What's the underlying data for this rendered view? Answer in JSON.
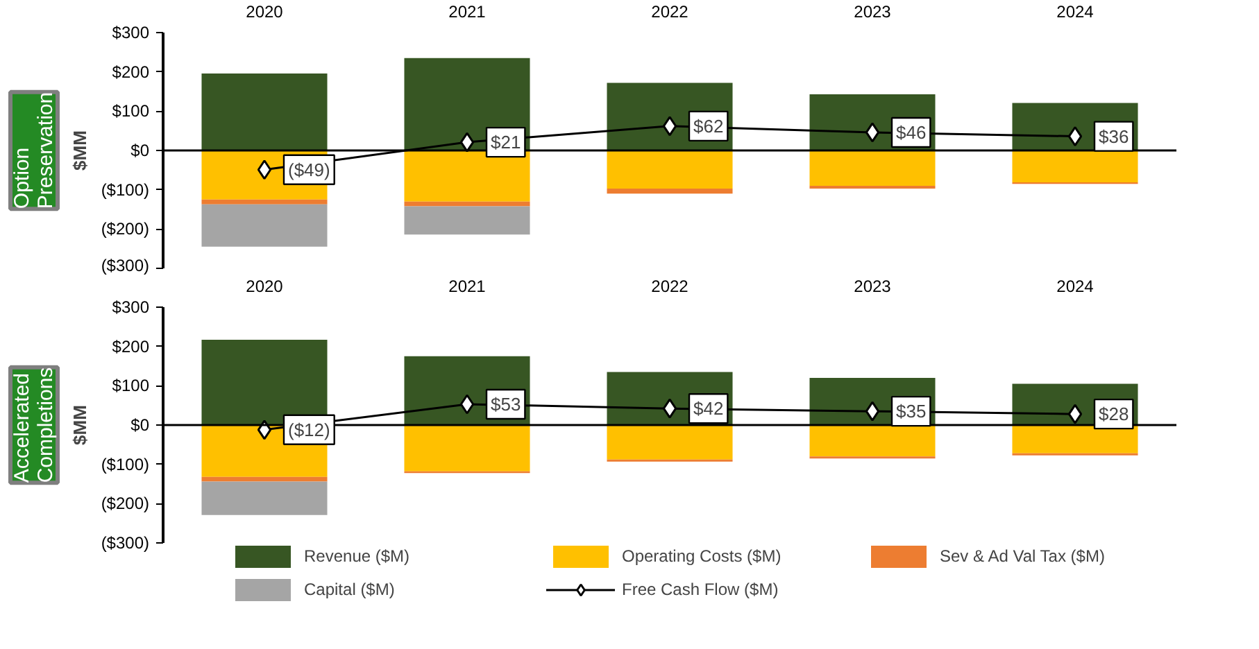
{
  "chart_data": [
    {
      "type": "bar",
      "title": "Option Preservation",
      "ylabel": "$MM",
      "stacked": true,
      "categories": [
        "2020",
        "2021",
        "2022",
        "2023",
        "2024"
      ],
      "series": [
        {
          "color": "#375623",
          "values": [
            196,
            235,
            172,
            143,
            121
          ]
        },
        {
          "color": "#ffc000",
          "values": [
            -125,
            -130,
            -97,
            -90,
            -81
          ]
        },
        {
          "color": "#ed7d31",
          "values": [
            -12,
            -12,
            -13,
            -7,
            -4
          ]
        },
        {
          "color": "#a5a5a5",
          "values": [
            -108,
            -72,
            null,
            null,
            null
          ]
        },
        {
          "type": "line",
          "color": "#000000",
          "marker": "diamond",
          "values": [
            -49,
            21,
            62,
            46,
            36
          ],
          "value_labels": [
            "($49)",
            "$21",
            "$62",
            "$46",
            "$36"
          ]
        }
      ],
      "ylim": [
        -300,
        300
      ],
      "yticks": [
        {
          "value": -300,
          "label": "($300)"
        },
        {
          "value": -200,
          "label": "($200)"
        },
        {
          "value": -100,
          "label": "($100)"
        },
        {
          "value": 0,
          "label": "$0"
        },
        {
          "value": 100,
          "label": "$100"
        },
        {
          "value": 200,
          "label": "$200"
        },
        {
          "value": 300,
          "label": "$300"
        }
      ],
      "ref_lines": [
        {
          "axis": "y",
          "value": 0,
          "label": null
        }
      ],
      "grid": false,
      "legend": false
    },
    {
      "type": "bar",
      "title": "Accelerated Completions",
      "ylabel": "$MM",
      "stacked": true,
      "categories": [
        "2020",
        "2021",
        "2022",
        "2023",
        "2024"
      ],
      "series": [
        {
          "name": "Revenue ($M)",
          "color": "#375623",
          "values": [
            217,
            175,
            135,
            120,
            105
          ]
        },
        {
          "name": "Operating Costs ($M)",
          "color": "#ffc000",
          "values": [
            -132,
            -118,
            -88,
            -80,
            -72
          ]
        },
        {
          "name": "Sev & Ad Val Tax ($M)",
          "color": "#ed7d31",
          "values": [
            -12,
            -4,
            -5,
            -5,
            -5
          ]
        },
        {
          "name": "Capital ($M)",
          "color": "#a5a5a5",
          "values": [
            -85,
            null,
            null,
            null,
            null
          ]
        },
        {
          "name": "Free Cash Flow ($M)",
          "type": "line",
          "color": "#000000",
          "marker": "diamond",
          "values": [
            -12,
            53,
            42,
            35,
            28
          ],
          "value_labels": [
            "($12)",
            "$53",
            "$42",
            "$35",
            "$28"
          ]
        }
      ],
      "ylim": [
        -300,
        300
      ],
      "yticks": [
        {
          "value": -300,
          "label": "($300)"
        },
        {
          "value": -200,
          "label": "($200)"
        },
        {
          "value": -100,
          "label": "($100)"
        },
        {
          "value": 0,
          "label": "$0"
        },
        {
          "value": 100,
          "label": "$100"
        },
        {
          "value": 200,
          "label": "$200"
        },
        {
          "value": 300,
          "label": "$300"
        }
      ],
      "ref_lines": [
        {
          "axis": "y",
          "value": 0,
          "label": null
        }
      ],
      "grid": false,
      "legend": "bottom"
    }
  ]
}
